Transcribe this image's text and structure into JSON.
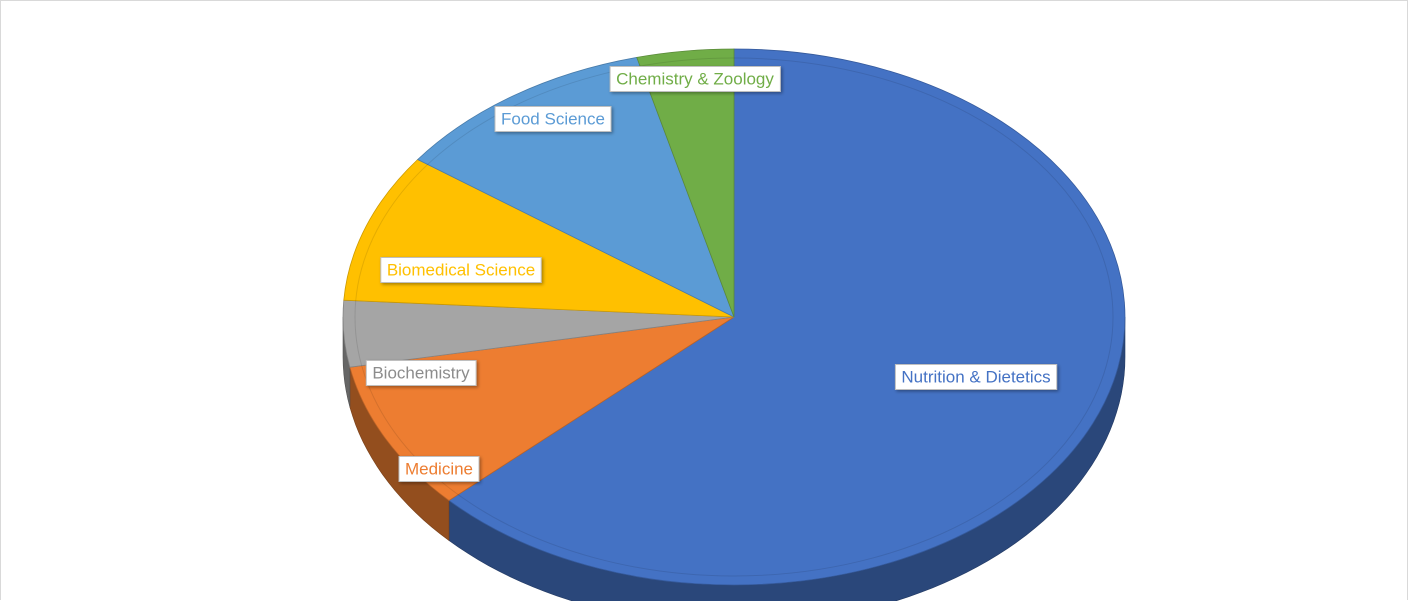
{
  "chart_data": {
    "type": "pie",
    "style": "3d",
    "slices": [
      {
        "label": "Nutrition & Dietetics",
        "value": 63,
        "color": "#4472c4"
      },
      {
        "label": "Medicine",
        "value": 9,
        "color": "#ed7d31"
      },
      {
        "label": "Biochemistry",
        "value": 4,
        "color": "#a5a5a5"
      },
      {
        "label": "Biomedical Science",
        "value": 9,
        "color": "#ffc000"
      },
      {
        "label": "Food Science",
        "value": 11,
        "color": "#5b9bd5"
      },
      {
        "label": "Chemistry & Zoology",
        "value": 4,
        "color": "#70ad47"
      }
    ],
    "title": "",
    "legend": "none",
    "data_labels": "category names in boxes"
  }
}
